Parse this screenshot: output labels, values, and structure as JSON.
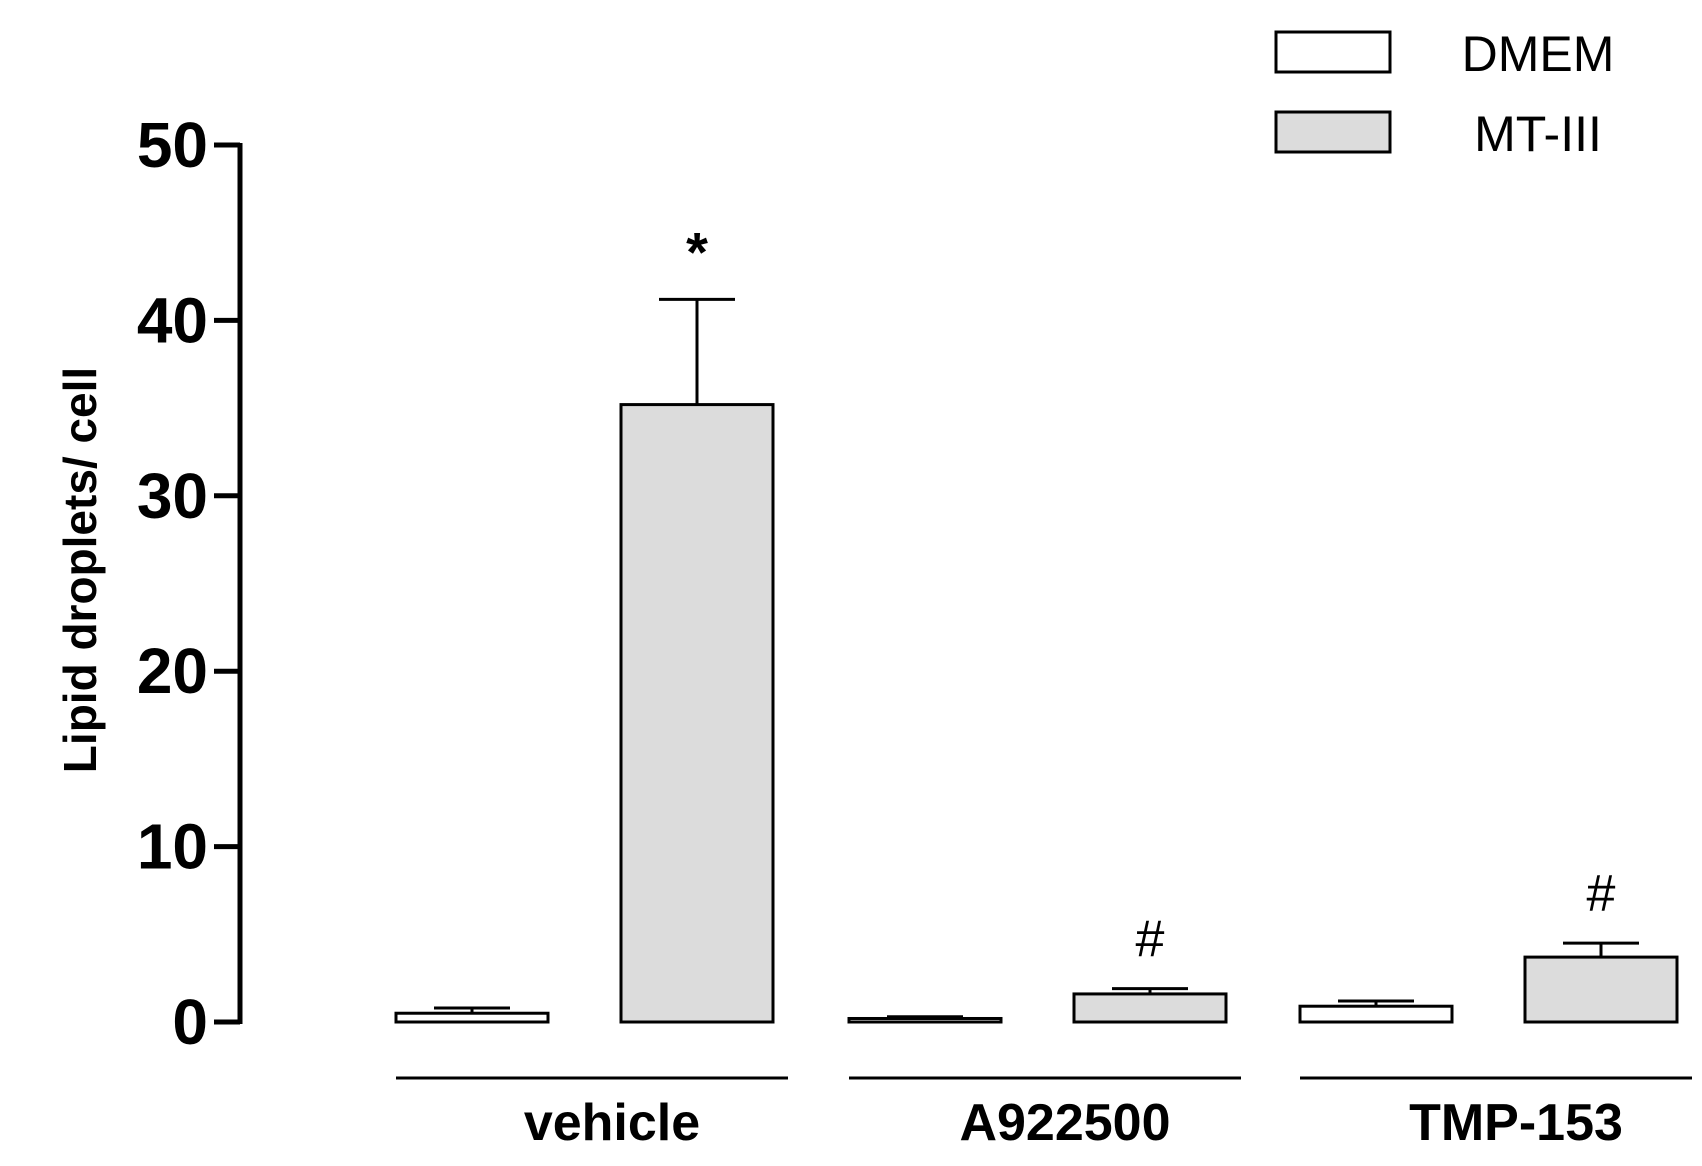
{
  "chart_data": {
    "type": "bar",
    "ylabel": "Lipid droplets/ cell",
    "ylim": [
      0,
      50
    ],
    "yticks": [
      0,
      10,
      20,
      30,
      40,
      50
    ],
    "categories": [
      "vehicle",
      "A922500",
      "TMP-153"
    ],
    "series": [
      {
        "name": "DMEM",
        "color": "#ffffff",
        "values": [
          0.5,
          0.2,
          0.9
        ],
        "errors": [
          0.3,
          0.1,
          0.3
        ],
        "annotations": [
          "",
          "",
          ""
        ]
      },
      {
        "name": "MT-III",
        "color": "#dcdcdc",
        "values": [
          35.2,
          1.6,
          3.7
        ],
        "errors": [
          6.0,
          0.3,
          0.8
        ],
        "annotations": [
          "*",
          "#",
          "#"
        ]
      }
    ],
    "legend": {
      "position": "top-right"
    },
    "grid": false
  }
}
